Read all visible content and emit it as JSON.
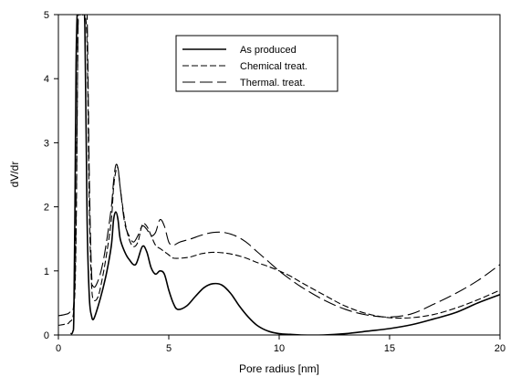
{
  "chart_data": {
    "type": "line",
    "title": "",
    "xlabel": "Pore radius [nm]",
    "ylabel": "dV/dr",
    "xlim": [
      0,
      20
    ],
    "ylim": [
      0,
      5
    ],
    "xticks": [
      0,
      5,
      10,
      15,
      20
    ],
    "yticks": [
      0,
      1,
      2,
      3,
      4,
      5
    ],
    "grid": false,
    "legend_position": "top-center",
    "series": [
      {
        "name": "As produced",
        "dash": "solid",
        "color": "#000000",
        "x": [
          0.55,
          0.65,
          0.7,
          0.75,
          0.8,
          0.85,
          0.9,
          1.0,
          1.1,
          1.2,
          1.3,
          1.4,
          1.5,
          1.6,
          1.8,
          2.0,
          2.2,
          2.4,
          2.5,
          2.6,
          2.7,
          2.8,
          3.0,
          3.2,
          3.5,
          3.8,
          4.0,
          4.2,
          4.4,
          4.6,
          4.8,
          5.0,
          5.2,
          5.4,
          5.8,
          6.2,
          6.6,
          7.0,
          7.4,
          7.8,
          8.2,
          8.6,
          9.0,
          9.5,
          10.0,
          10.5,
          11.0,
          12.0,
          13.0,
          14.0,
          15.0,
          16.0,
          17.0,
          18.0,
          19.0,
          20.0
        ],
        "y": [
          0.02,
          0.05,
          0.3,
          2.0,
          4.2,
          5.0,
          5.0,
          5.0,
          5.0,
          4.8,
          1.8,
          0.6,
          0.3,
          0.25,
          0.45,
          0.7,
          1.0,
          1.4,
          1.8,
          1.92,
          1.8,
          1.5,
          1.3,
          1.18,
          1.1,
          1.38,
          1.3,
          1.05,
          0.95,
          1.0,
          0.95,
          0.7,
          0.5,
          0.4,
          0.45,
          0.6,
          0.74,
          0.8,
          0.78,
          0.65,
          0.45,
          0.28,
          0.15,
          0.06,
          0.02,
          0.01,
          0.0,
          0.0,
          0.02,
          0.06,
          0.1,
          0.16,
          0.25,
          0.35,
          0.5,
          0.63
        ]
      },
      {
        "name": "Chemical treat.",
        "dash": "short",
        "color": "#000000",
        "x": [
          0,
          0.3,
          0.5,
          0.7,
          0.8,
          0.9,
          1.0,
          1.1,
          1.2,
          1.3,
          1.4,
          1.5,
          1.6,
          1.8,
          2.0,
          2.2,
          2.4,
          2.5,
          2.6,
          2.7,
          2.8,
          3.0,
          3.2,
          3.4,
          3.6,
          3.8,
          4.0,
          4.2,
          4.4,
          4.6,
          4.8,
          5.0,
          5.2,
          5.6,
          6.0,
          6.5,
          7.0,
          7.5,
          8.0,
          8.5,
          9.0,
          9.5,
          10.0,
          10.5,
          11.0,
          12.0,
          13.0,
          14.0,
          15.0,
          16.0,
          17.0,
          18.0,
          19.0,
          20.0
        ],
        "y": [
          0.15,
          0.17,
          0.2,
          0.4,
          1.5,
          5.0,
          5.0,
          5.0,
          5.0,
          4.5,
          2.0,
          0.8,
          0.55,
          0.6,
          0.9,
          1.3,
          1.8,
          2.3,
          2.55,
          2.6,
          2.3,
          1.8,
          1.5,
          1.38,
          1.45,
          1.72,
          1.7,
          1.55,
          1.4,
          1.35,
          1.3,
          1.25,
          1.2,
          1.2,
          1.22,
          1.27,
          1.29,
          1.28,
          1.25,
          1.2,
          1.13,
          1.07,
          1.0,
          0.92,
          0.82,
          0.63,
          0.45,
          0.33,
          0.27,
          0.27,
          0.32,
          0.42,
          0.55,
          0.7
        ]
      },
      {
        "name": "Thermal. treat.",
        "dash": "long",
        "color": "#000000",
        "x": [
          0,
          0.3,
          0.5,
          0.7,
          0.8,
          0.9,
          1.0,
          1.1,
          1.2,
          1.3,
          1.4,
          1.5,
          1.6,
          1.8,
          2.0,
          2.2,
          2.4,
          2.5,
          2.6,
          2.7,
          2.8,
          3.0,
          3.2,
          3.4,
          3.6,
          3.8,
          4.0,
          4.2,
          4.4,
          4.6,
          4.8,
          5.0,
          5.2,
          5.5,
          6.0,
          6.5,
          7.0,
          7.5,
          8.0,
          8.5,
          9.0,
          9.5,
          10.0,
          10.5,
          11.0,
          12.0,
          13.0,
          14.0,
          15.0,
          16.0,
          17.0,
          18.0,
          19.0,
          20.0
        ],
        "y": [
          0.3,
          0.32,
          0.35,
          0.5,
          1.8,
          5.0,
          5.0,
          5.0,
          5.0,
          5.0,
          2.5,
          1.0,
          0.75,
          0.85,
          1.1,
          1.5,
          2.0,
          2.4,
          2.65,
          2.6,
          2.3,
          1.75,
          1.55,
          1.45,
          1.55,
          1.7,
          1.65,
          1.55,
          1.6,
          1.8,
          1.7,
          1.45,
          1.4,
          1.45,
          1.5,
          1.56,
          1.6,
          1.6,
          1.55,
          1.45,
          1.3,
          1.15,
          1.0,
          0.87,
          0.75,
          0.55,
          0.4,
          0.31,
          0.28,
          0.33,
          0.48,
          0.65,
          0.85,
          1.1
        ]
      }
    ]
  }
}
